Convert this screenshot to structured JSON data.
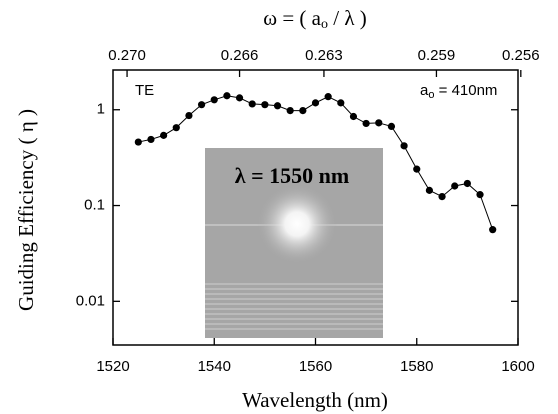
{
  "chart_data": {
    "type": "line",
    "xlabel": "Wavelength (nm)",
    "ylabel": "Guiding Efficiency ( η )",
    "x2label": [
      "ω = ( a",
      "o",
      " / λ )"
    ],
    "annotations": [
      "TE"
    ],
    "param_label": [
      "a",
      "o",
      " = 410nm"
    ],
    "inset_label": "λ = 1550 nm",
    "x": [
      1525,
      1527.5,
      1530,
      1532.5,
      1535,
      1537.5,
      1540,
      1542.5,
      1545,
      1547.5,
      1550,
      1552.5,
      1555,
      1557.5,
      1560,
      1562.5,
      1565,
      1567.5,
      1570,
      1572.5,
      1575,
      1577.5,
      1580,
      1582.5,
      1585,
      1587.5,
      1590,
      1592.5,
      1595
    ],
    "series": [
      {
        "color": "#000000",
        "values": [
          0.46,
          0.49,
          0.54,
          0.65,
          0.87,
          1.13,
          1.27,
          1.4,
          1.33,
          1.15,
          1.13,
          1.1,
          0.98,
          0.98,
          1.18,
          1.37,
          1.18,
          0.85,
          0.72,
          0.73,
          0.67,
          0.42,
          0.24,
          0.144,
          0.124,
          0.16,
          0.17,
          0.13,
          0.056
        ]
      }
    ],
    "xlim": [
      1520,
      1600
    ],
    "xticks": [
      1520,
      1540,
      1560,
      1580,
      1600
    ],
    "ylim": [
      0.0035,
      2.6
    ],
    "yticks": [
      0.01,
      0.1,
      1
    ],
    "log_y": true,
    "x2lim": [
      0.2705,
      0.2561
    ],
    "x2ticks": [
      {
        "value": 0.27,
        "label": "0.270"
      },
      {
        "value": 0.266,
        "label": "0.266"
      },
      {
        "value": 0.263,
        "label": "0.263"
      },
      {
        "value": 0.259,
        "label": "0.259"
      },
      {
        "value": 0.256,
        "label": "0.256"
      }
    ]
  }
}
